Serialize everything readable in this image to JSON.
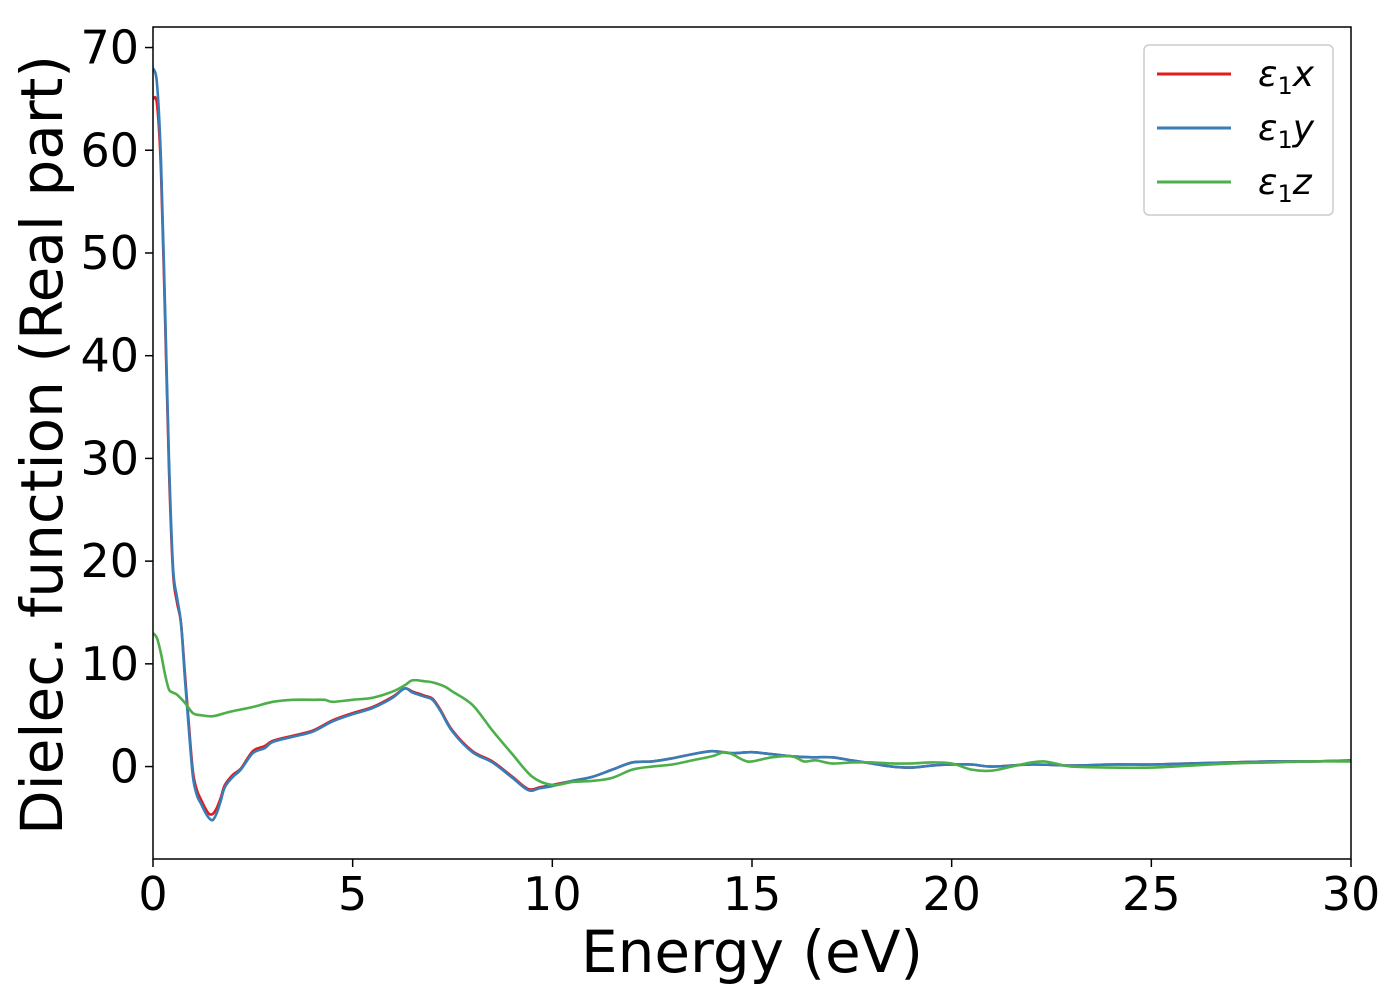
{
  "chart_data": {
    "type": "line",
    "title": "",
    "xlabel": "Energy (eV)",
    "ylabel": "Dielec. function (Real part)",
    "xlim": [
      0,
      30
    ],
    "ylim": [
      -9,
      72
    ],
    "grid": false,
    "legend_position": "top-right",
    "x_ticks": [
      {
        "value": 0,
        "label": "0"
      },
      {
        "value": 5,
        "label": "5"
      },
      {
        "value": 10,
        "label": "10"
      },
      {
        "value": 15,
        "label": "15"
      },
      {
        "value": 20,
        "label": "20"
      },
      {
        "value": 25,
        "label": "25"
      },
      {
        "value": 30,
        "label": "30"
      }
    ],
    "y_ticks": [
      {
        "value": 0,
        "label": "0"
      },
      {
        "value": 10,
        "label": "10"
      },
      {
        "value": 20,
        "label": "20"
      },
      {
        "value": 30,
        "label": "30"
      },
      {
        "value": 40,
        "label": "40"
      },
      {
        "value": 50,
        "label": "50"
      },
      {
        "value": 60,
        "label": "60"
      },
      {
        "value": 70,
        "label": "70"
      }
    ],
    "series": [
      {
        "name": "ε1x",
        "label_main": "ε",
        "label_sub": "1",
        "label_var": "x",
        "color": "#e41a1c",
        "x": [
          0,
          0.1,
          0.2,
          0.3,
          0.4,
          0.5,
          0.6,
          0.7,
          0.8,
          0.9,
          1.0,
          1.1,
          1.2,
          1.3,
          1.4,
          1.5,
          1.6,
          1.7,
          1.8,
          2.0,
          2.2,
          2.5,
          2.8,
          3.0,
          3.5,
          4.0,
          4.5,
          5.0,
          5.5,
          6.0,
          6.3,
          6.5,
          6.8,
          7.0,
          7.2,
          7.5,
          8.0,
          8.5,
          9.0,
          9.4,
          9.7,
          10.0,
          10.5,
          11.0,
          11.5,
          12.0,
          12.5,
          13.0,
          13.5,
          14.0,
          14.5,
          15.0,
          15.5,
          16.0,
          16.5,
          17.0,
          17.5,
          18.0,
          18.5,
          19.0,
          19.5,
          20.0,
          20.5,
          21.0,
          22.0,
          23.0,
          24.0,
          25.0,
          26.0,
          27.0,
          28.0,
          29.0,
          30.0
        ],
        "y": [
          65.0,
          64.5,
          58.0,
          44.0,
          29.0,
          19.0,
          16.0,
          14.0,
          9.0,
          4.0,
          -0.5,
          -2.3,
          -3.2,
          -4.0,
          -4.6,
          -4.6,
          -4.0,
          -3.0,
          -1.8,
          -0.8,
          -0.2,
          1.5,
          2.0,
          2.5,
          3.0,
          3.5,
          4.5,
          5.2,
          5.8,
          6.8,
          7.6,
          7.3,
          6.9,
          6.6,
          5.5,
          3.5,
          1.5,
          0.5,
          -1.0,
          -2.2,
          -2.0,
          -1.8,
          -1.4,
          -1.0,
          -0.3,
          0.4,
          0.5,
          0.8,
          1.2,
          1.5,
          1.3,
          1.4,
          1.2,
          1.0,
          0.9,
          0.9,
          0.6,
          0.3,
          0.0,
          -0.1,
          0.1,
          0.2,
          0.2,
          0.0,
          0.2,
          0.1,
          0.2,
          0.2,
          0.3,
          0.4,
          0.5,
          0.5,
          0.6
        ]
      },
      {
        "name": "ε1y",
        "label_main": "ε",
        "label_sub": "1",
        "label_var": "y",
        "color": "#377eb8",
        "x": [
          0,
          0.1,
          0.2,
          0.3,
          0.4,
          0.5,
          0.6,
          0.7,
          0.8,
          0.9,
          1.0,
          1.1,
          1.2,
          1.3,
          1.4,
          1.5,
          1.6,
          1.7,
          1.8,
          2.0,
          2.2,
          2.5,
          2.8,
          3.0,
          3.5,
          4.0,
          4.5,
          5.0,
          5.5,
          6.0,
          6.3,
          6.5,
          6.8,
          7.0,
          7.2,
          7.5,
          8.0,
          8.5,
          9.0,
          9.4,
          9.7,
          10.0,
          10.5,
          11.0,
          11.5,
          12.0,
          12.5,
          13.0,
          13.5,
          14.0,
          14.5,
          15.0,
          15.5,
          16.0,
          16.5,
          17.0,
          17.5,
          18.0,
          18.5,
          19.0,
          19.5,
          20.0,
          20.5,
          21.0,
          22.0,
          23.0,
          24.0,
          25.0,
          26.0,
          27.0,
          28.0,
          29.0,
          30.0
        ],
        "y": [
          68.0,
          66.5,
          59.0,
          45.0,
          30.0,
          19.5,
          16.5,
          14.0,
          8.5,
          3.5,
          -1.0,
          -2.8,
          -3.6,
          -4.4,
          -5.0,
          -5.2,
          -4.5,
          -3.3,
          -2.0,
          -1.0,
          -0.3,
          1.3,
          1.8,
          2.4,
          2.9,
          3.4,
          4.4,
          5.1,
          5.7,
          6.7,
          7.6,
          7.2,
          6.8,
          6.5,
          5.4,
          3.4,
          1.4,
          0.4,
          -1.1,
          -2.3,
          -2.1,
          -1.9,
          -1.4,
          -1.0,
          -0.3,
          0.4,
          0.5,
          0.8,
          1.2,
          1.5,
          1.3,
          1.4,
          1.2,
          1.0,
          0.9,
          0.9,
          0.6,
          0.3,
          0.0,
          -0.1,
          0.1,
          0.2,
          0.2,
          0.0,
          0.2,
          0.1,
          0.2,
          0.2,
          0.3,
          0.4,
          0.5,
          0.5,
          0.6
        ]
      },
      {
        "name": "ε1z",
        "label_main": "ε",
        "label_sub": "1",
        "label_var": "z",
        "color": "#4daf4a",
        "x": [
          0,
          0.1,
          0.2,
          0.3,
          0.4,
          0.5,
          0.6,
          0.8,
          1.0,
          1.2,
          1.5,
          1.8,
          2.0,
          2.5,
          3.0,
          3.5,
          4.0,
          4.3,
          4.5,
          5.0,
          5.5,
          6.0,
          6.3,
          6.5,
          6.8,
          7.0,
          7.3,
          7.5,
          8.0,
          8.5,
          9.0,
          9.5,
          10.0,
          10.5,
          11.0,
          11.5,
          12.0,
          12.5,
          13.0,
          13.5,
          14.0,
          14.3,
          14.5,
          14.8,
          15.0,
          15.5,
          16.0,
          16.3,
          16.6,
          17.0,
          17.5,
          18.0,
          18.5,
          19.0,
          19.5,
          20.0,
          20.5,
          21.0,
          21.5,
          22.0,
          22.3,
          22.6,
          23.0,
          24.0,
          25.0,
          26.0,
          27.0,
          28.0,
          29.0,
          30.0
        ],
        "y": [
          13.0,
          12.5,
          11.0,
          9.0,
          7.5,
          7.2,
          7.0,
          6.2,
          5.2,
          5.0,
          4.9,
          5.2,
          5.4,
          5.8,
          6.3,
          6.5,
          6.5,
          6.5,
          6.3,
          6.5,
          6.7,
          7.3,
          7.9,
          8.4,
          8.3,
          8.2,
          7.8,
          7.3,
          6.0,
          3.5,
          1.2,
          -1.0,
          -1.8,
          -1.5,
          -1.4,
          -1.1,
          -0.3,
          0.0,
          0.2,
          0.6,
          1.0,
          1.4,
          1.2,
          0.6,
          0.5,
          0.9,
          1.0,
          0.5,
          0.6,
          0.3,
          0.4,
          0.4,
          0.3,
          0.3,
          0.4,
          0.3,
          -0.3,
          -0.4,
          0.0,
          0.4,
          0.5,
          0.3,
          0.0,
          -0.1,
          -0.1,
          0.1,
          0.3,
          0.4,
          0.5,
          0.5
        ]
      }
    ]
  }
}
